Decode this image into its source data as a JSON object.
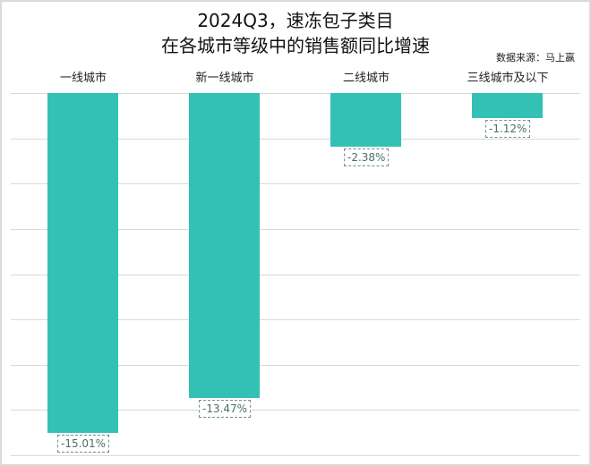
{
  "title_line1": "2024Q3，速冻包子类目",
  "title_line2": "在各城市等级中的销售额同比增速",
  "source": "数据来源：马上赢",
  "colors": {
    "bar": "#33c1b5",
    "label_text": "#4e6e6a",
    "grid": "#d9d9d9"
  },
  "chart_data": {
    "type": "bar",
    "title": "2024Q3，速冻包子类目 在各城市等级中的销售额同比增速",
    "categories": [
      "一线城市",
      "新一线城市",
      "二线城市",
      "三线城市及以下"
    ],
    "values": [
      -15.01,
      -13.47,
      -2.38,
      -1.12
    ],
    "data_labels": [
      "-15.01%",
      "-13.47%",
      "-2.38%",
      "-1.12%"
    ],
    "xlabel": "",
    "ylabel": "",
    "ylim": [
      -16,
      0
    ],
    "grid": true,
    "gridline_step": 2,
    "x_axis_position": "top",
    "y_axis_visible": false,
    "annotation": "数据来源：马上赢"
  }
}
